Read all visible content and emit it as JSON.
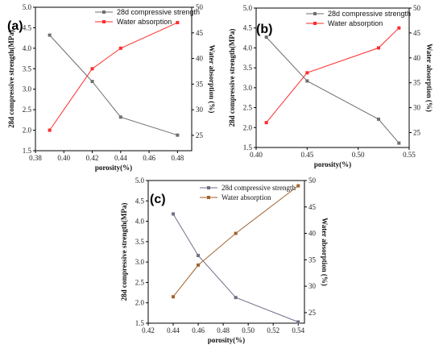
{
  "chart_data": [
    {
      "type": "line",
      "panel_label": "(a)",
      "xlabel": "porosity(%)",
      "ylabel_left": "28d compressive strength(MPa)",
      "ylabel_right": "Water absorption (%)",
      "xlim": [
        0.38,
        0.49
      ],
      "ylim_left": [
        1.5,
        5.0
      ],
      "ylim_right": [
        22,
        50
      ],
      "xticks": [
        "0.38",
        "0.40",
        "0.42",
        "0.44",
        "0.46",
        "0.48"
      ],
      "yticks_left": [
        "1.5",
        "2.0",
        "2.5",
        "3.0",
        "3.5",
        "4.0",
        "4.5",
        "5.0"
      ],
      "yticks_right": [
        "25",
        "30",
        "35",
        "40",
        "45",
        "50"
      ],
      "legend_position": "top",
      "series": [
        {
          "name": "28d compressive strength",
          "axis": "left",
          "color": "#6e6e6e",
          "x": [
            0.39,
            0.42,
            0.44,
            0.48
          ],
          "values": [
            4.32,
            3.19,
            2.32,
            1.88
          ]
        },
        {
          "name": "Water absorption",
          "axis": "right",
          "color": "#ff2a2a",
          "x": [
            0.39,
            0.42,
            0.44,
            0.48
          ],
          "values": [
            26,
            38,
            42,
            47
          ]
        }
      ]
    },
    {
      "type": "line",
      "panel_label": "(b)",
      "xlabel": "porosity(%)",
      "ylabel_left": "28d compressive strength(MPa)",
      "ylabel_right": "Water absorption (%)",
      "xlim": [
        0.4,
        0.55
      ],
      "ylim_left": [
        1.5,
        5.0
      ],
      "ylim_right": [
        22,
        50
      ],
      "xticks": [
        "0.40",
        "0.45",
        "0.50",
        "0.55"
      ],
      "yticks_left": [
        "1.5",
        "2.0",
        "2.5",
        "3.0",
        "3.5",
        "4.0",
        "4.5",
        "5.0"
      ],
      "yticks_right": [
        "25",
        "30",
        "35",
        "40",
        "45",
        "50"
      ],
      "legend_position": "top",
      "series": [
        {
          "name": "28d compressive strength",
          "axis": "left",
          "color": "#6e6e6e",
          "x": [
            0.41,
            0.45,
            0.52,
            0.54
          ],
          "values": [
            4.27,
            3.17,
            2.21,
            1.61
          ]
        },
        {
          "name": "Water absorption",
          "axis": "right",
          "color": "#ff2a2a",
          "x": [
            0.41,
            0.45,
            0.52,
            0.54
          ],
          "values": [
            27,
            37,
            42,
            46
          ]
        }
      ]
    },
    {
      "type": "line",
      "panel_label": "(c)",
      "xlabel": "porosity(%)",
      "ylabel_left": "28d compressive strength(MPa)",
      "ylabel_right": "Water absorption (%)",
      "xlim": [
        0.42,
        0.545
      ],
      "ylim_left": [
        1.5,
        5.0
      ],
      "ylim_right": [
        23,
        50
      ],
      "xticks": [
        "0.42",
        "0.44",
        "0.46",
        "0.48",
        "0.50",
        "0.52",
        "0.54"
      ],
      "yticks_left": [
        "1.5",
        "2.0",
        "2.5",
        "3.0",
        "3.5",
        "4.0",
        "4.5",
        "5.0"
      ],
      "yticks_right": [
        "25",
        "30",
        "35",
        "40",
        "45",
        "50"
      ],
      "legend_position": "top",
      "series": [
        {
          "name": "28d compressive strength",
          "axis": "left",
          "color": "#6e6e8a",
          "x": [
            0.44,
            0.46,
            0.49,
            0.54
          ],
          "values": [
            4.18,
            3.16,
            2.13,
            1.53
          ]
        },
        {
          "name": "Water absorption",
          "axis": "right",
          "color": "#a0622d",
          "x": [
            0.44,
            0.46,
            0.49,
            0.54
          ],
          "values": [
            28,
            34,
            40,
            49
          ]
        }
      ]
    }
  ]
}
